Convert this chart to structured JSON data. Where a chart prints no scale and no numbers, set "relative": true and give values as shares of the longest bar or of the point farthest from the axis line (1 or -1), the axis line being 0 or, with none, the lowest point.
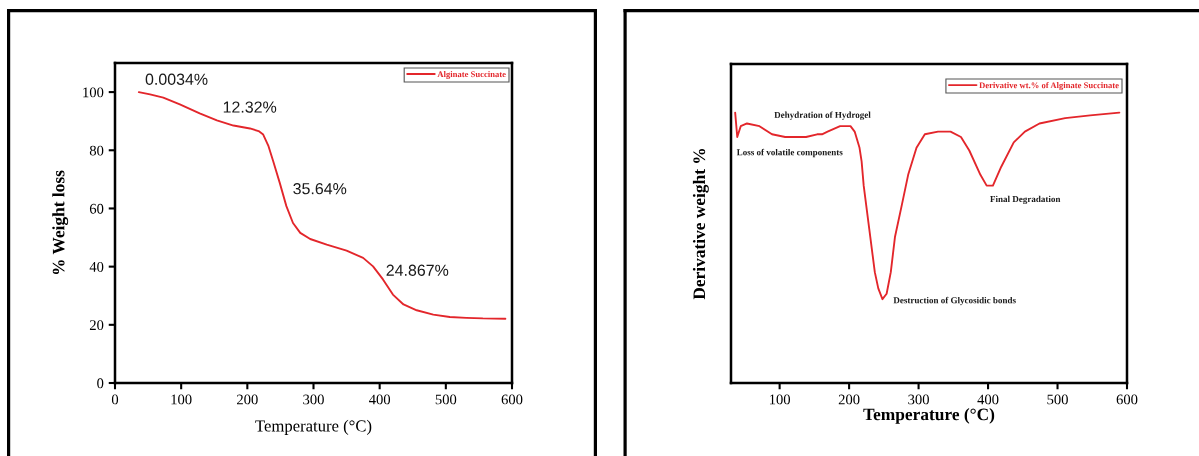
{
  "chart_data": [
    {
      "type": "line",
      "xlabel": "Temperature (°C)",
      "ylabel": "% Weight loss",
      "xlim": [
        0,
        600
      ],
      "ylim": [
        0,
        110
      ],
      "xticks": [
        0,
        100,
        200,
        300,
        400,
        500,
        600
      ],
      "yticks": [
        0,
        20,
        40,
        60,
        80,
        100
      ],
      "legend": "top right",
      "series": [
        {
          "name": "Alginate Succinate",
          "color": "#e3262b",
          "x": [
            36,
            53,
            73,
            98,
            128,
            154,
            179,
            204,
            217,
            224,
            232,
            239,
            249,
            259,
            269,
            280,
            295,
            320,
            350,
            375,
            390,
            405,
            420,
            436,
            456,
            481,
            506,
            531,
            556,
            590
          ],
          "values": [
            100,
            99.2,
            98.1,
            95.8,
            92.7,
            90.3,
            88.5,
            87.5,
            86.6,
            85.4,
            81.4,
            76.3,
            68.8,
            60.8,
            55,
            51.6,
            49.5,
            47.6,
            45.5,
            43,
            40.1,
            35.6,
            30.4,
            27,
            25,
            23.5,
            22.7,
            22.4,
            22.2,
            22.1
          ]
        }
      ],
      "annotations": [
        "0.0034%",
        "12.32%",
        "35.64%",
        "24.867%"
      ]
    },
    {
      "type": "line",
      "relative": true,
      "xlabel": "Temperature (°C)",
      "ylabel": "Derivative weight %",
      "xlim": [
        30,
        600
      ],
      "xticks": [
        100,
        200,
        300,
        400,
        500,
        600
      ],
      "legend": "top right",
      "series": [
        {
          "name": "Derivative wt.% of Alginate Succinate",
          "color": "#e3262b",
          "x": [
            36,
            39,
            44,
            53,
            71,
            89,
            108,
            138,
            154,
            161,
            169,
            187,
            202,
            208,
            215,
            218,
            221,
            229,
            237,
            242,
            248,
            254,
            260,
            266,
            276,
            285,
            297,
            309,
            328,
            346,
            361,
            373,
            389,
            398,
            407,
            419,
            437,
            453,
            474,
            511,
            547,
            589
          ],
          "values": [
            1.0,
            0.91,
            0.95,
            0.96,
            0.95,
            0.92,
            0.91,
            0.91,
            0.92,
            0.92,
            0.93,
            0.95,
            0.95,
            0.93,
            0.87,
            0.82,
            0.73,
            0.57,
            0.41,
            0.35,
            0.31,
            0.33,
            0.41,
            0.54,
            0.66,
            0.77,
            0.87,
            0.92,
            0.93,
            0.93,
            0.91,
            0.86,
            0.77,
            0.73,
            0.73,
            0.8,
            0.89,
            0.93,
            0.96,
            0.98,
            0.99,
            1.0
          ]
        }
      ],
      "annotations": [
        "Dehydration of Hydrogel",
        "Loss of volatile components",
        "Destruction of Glycosidic bonds",
        "Final Degradation"
      ]
    }
  ]
}
